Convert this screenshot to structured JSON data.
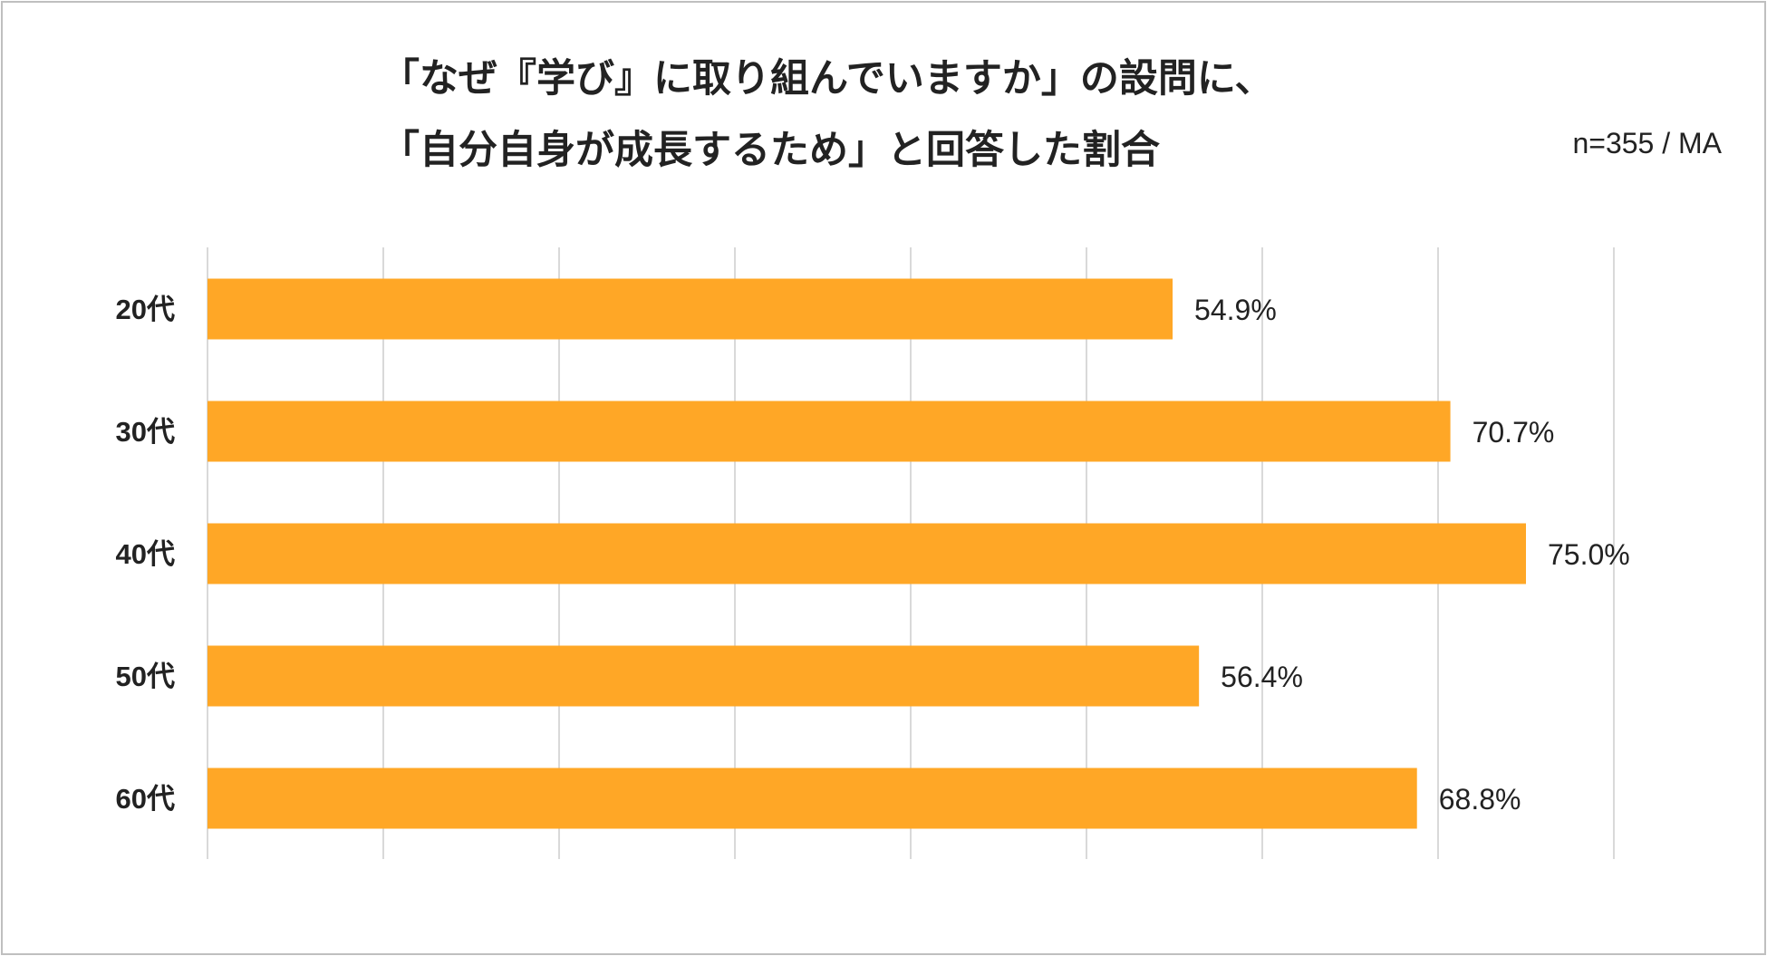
{
  "chart_data": {
    "type": "bar",
    "orientation": "horizontal",
    "title_line1": "「なぜ『学び』に取り組んでいますか」の設問に、",
    "title_line2": "「自分自身が成長するため」と回答した割合",
    "note": "n=355 / MA",
    "categories": [
      "20代",
      "30代",
      "40代",
      "50代",
      "60代"
    ],
    "values": [
      54.9,
      70.7,
      75.0,
      56.4,
      68.8
    ],
    "value_labels": [
      "54.9%",
      "70.7%",
      "75.0%",
      "56.4%",
      "68.8%"
    ],
    "xlim": [
      0,
      80
    ],
    "grid": true,
    "legend": "none",
    "bar_color": "#FFA726",
    "grid_color": "#d9d9d9"
  }
}
